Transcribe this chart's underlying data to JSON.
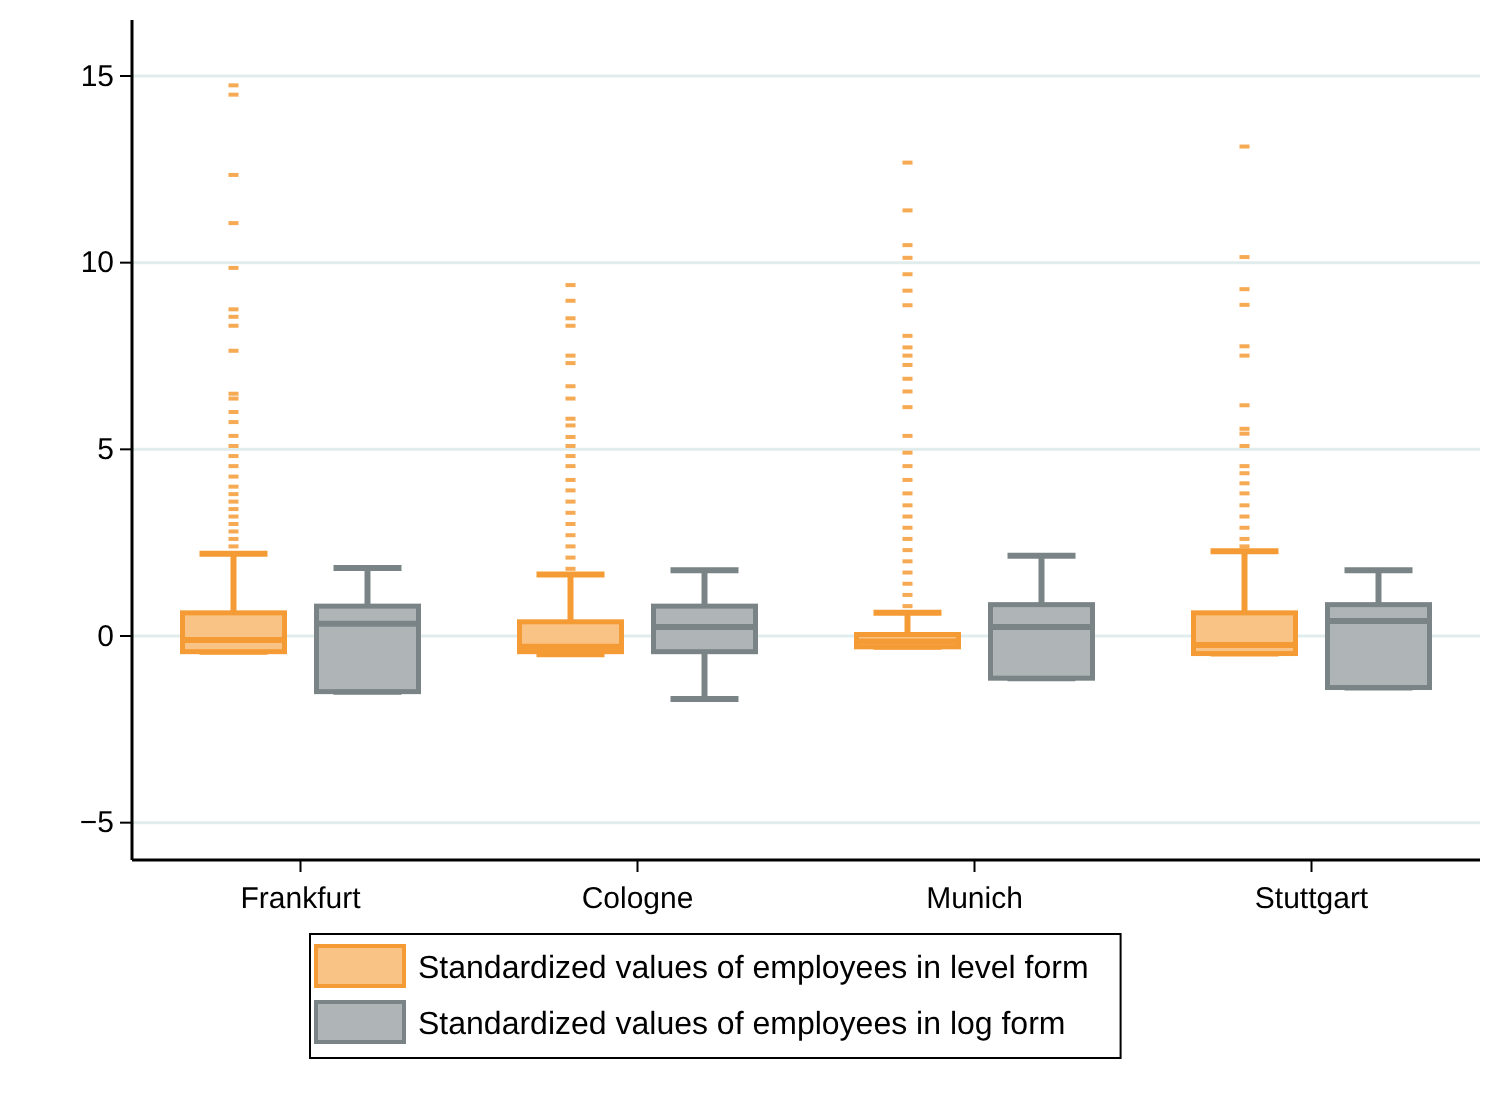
{
  "chart_data": {
    "type": "box",
    "categories": [
      "Frankfurt",
      "Cologne",
      "Munich",
      "Stuttgart"
    ],
    "ylim": [
      -6,
      16.5
    ],
    "yticks": [
      {
        "value": -5,
        "label": "−5"
      },
      0,
      5,
      10,
      15
    ],
    "grid": "y",
    "legend": "bottom",
    "series": [
      {
        "name": "Standardized values of employees in level form",
        "color": "#f59b35",
        "boxes": [
          {
            "low": -0.42,
            "q1": -0.42,
            "median": -0.11,
            "q3": 0.62,
            "high": 2.2,
            "outliers": [
              14.75,
              14.5,
              12.35,
              11.06,
              9.86,
              8.75,
              8.55,
              8.31,
              7.64,
              6.49,
              6.36,
              6.0,
              5.73,
              5.36,
              5.09,
              4.82,
              4.55,
              4.27,
              4.0,
              3.8,
              3.6,
              3.4,
              3.2,
              3.0,
              2.8,
              2.6,
              2.4
            ]
          },
          {
            "low": -0.49,
            "q1": -0.42,
            "median": -0.29,
            "q3": 0.38,
            "high": 1.65,
            "outliers": [
              9.4,
              8.98,
              8.51,
              8.31,
              7.51,
              7.31,
              6.69,
              6.36,
              5.82,
              5.64,
              5.33,
              5.09,
              4.82,
              4.55,
              4.18,
              3.9,
              3.6,
              3.3,
              3.0,
              2.7,
              2.4,
              2.1,
              1.8
            ]
          },
          {
            "low": -0.29,
            "q1": -0.29,
            "median": -0.15,
            "q3": 0.04,
            "high": 0.62,
            "outliers": [
              12.68,
              11.4,
              10.47,
              10.13,
              9.69,
              9.25,
              8.86,
              8.04,
              7.73,
              7.51,
              7.26,
              6.89,
              6.55,
              6.13,
              5.36,
              4.91,
              4.55,
              4.18,
              3.82,
              3.5,
              3.2,
              2.9,
              2.6,
              2.3,
              2.0,
              1.7,
              1.4,
              1.1,
              0.8
            ]
          },
          {
            "low": -0.47,
            "q1": -0.47,
            "median": -0.24,
            "q3": 0.62,
            "high": 2.27,
            "outliers": [
              13.11,
              10.15,
              9.29,
              8.87,
              7.76,
              7.51,
              6.18,
              5.55,
              5.42,
              5.09,
              4.55,
              4.36,
              4.09,
              3.82,
              3.5,
              3.2,
              2.9,
              2.6,
              2.4
            ]
          }
        ]
      },
      {
        "name": "Standardized values of employees in log form",
        "color": "#7a8486",
        "boxes": [
          {
            "low": -1.49,
            "q1": -1.49,
            "median": 0.33,
            "q3": 0.8,
            "high": 1.82
          },
          {
            "low": -1.69,
            "q1": -0.42,
            "median": 0.24,
            "q3": 0.8,
            "high": 1.76
          },
          {
            "low": -1.13,
            "q1": -1.13,
            "median": 0.24,
            "q3": 0.84,
            "high": 2.15
          },
          {
            "low": -1.38,
            "q1": -1.38,
            "median": 0.4,
            "q3": 0.84,
            "high": 1.76
          }
        ]
      }
    ]
  }
}
